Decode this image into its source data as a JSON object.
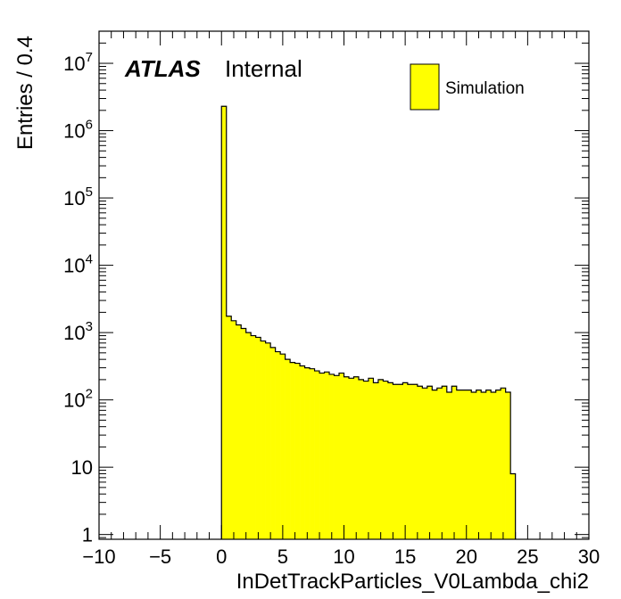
{
  "chart_data": {
    "type": "bar",
    "style": "histogram",
    "xlabel": "InDetTrackParticles_V0Lambda_chi2",
    "ylabel": "Entries / 0.4",
    "xlim": [
      -10,
      30
    ],
    "ylim": [
      0.85,
      30000000
    ],
    "yscale": "log",
    "x_ticks": [
      {
        "value": -10,
        "label": "−10"
      },
      {
        "value": -5,
        "label": "−5"
      },
      {
        "value": 0,
        "label": "0"
      },
      {
        "value": 5,
        "label": "5"
      },
      {
        "value": 10,
        "label": "10"
      },
      {
        "value": 15,
        "label": "15"
      },
      {
        "value": 20,
        "label": "20"
      },
      {
        "value": 25,
        "label": "25"
      },
      {
        "value": 30,
        "label": "30"
      }
    ],
    "y_ticks": [
      {
        "value": 1,
        "base": "1",
        "exp": ""
      },
      {
        "value": 10,
        "base": "10",
        "exp": ""
      },
      {
        "value": 100,
        "base": "10",
        "exp": "2"
      },
      {
        "value": 1000,
        "base": "10",
        "exp": "3"
      },
      {
        "value": 10000,
        "base": "10",
        "exp": "4"
      },
      {
        "value": 100000,
        "base": "10",
        "exp": "5"
      },
      {
        "value": 1000000,
        "base": "10",
        "exp": "6"
      },
      {
        "value": 10000000,
        "base": "10",
        "exp": "7"
      }
    ],
    "bin_width": 0.4,
    "bin_start": 0,
    "values": [
      2300000,
      1750,
      1500,
      1300,
      1150,
      1000,
      900,
      850,
      750,
      700,
      600,
      520,
      480,
      400,
      360,
      350,
      320,
      300,
      290,
      270,
      250,
      260,
      240,
      230,
      250,
      220,
      210,
      220,
      200,
      190,
      210,
      180,
      200,
      190,
      180,
      170,
      170,
      180,
      170,
      170,
      160,
      150,
      160,
      140,
      150,
      160,
      130,
      160,
      140,
      140,
      140,
      130,
      140,
      130,
      140,
      130,
      140,
      150,
      130,
      8
    ],
    "fill_color": "#ffff00",
    "line_color": "#000000",
    "grid": false,
    "legend_position": "top-right",
    "legend": [
      {
        "name": "Simulation",
        "color": "#ffff00"
      }
    ]
  },
  "labels": {
    "experiment": "ATLAS",
    "status": "Internal"
  }
}
